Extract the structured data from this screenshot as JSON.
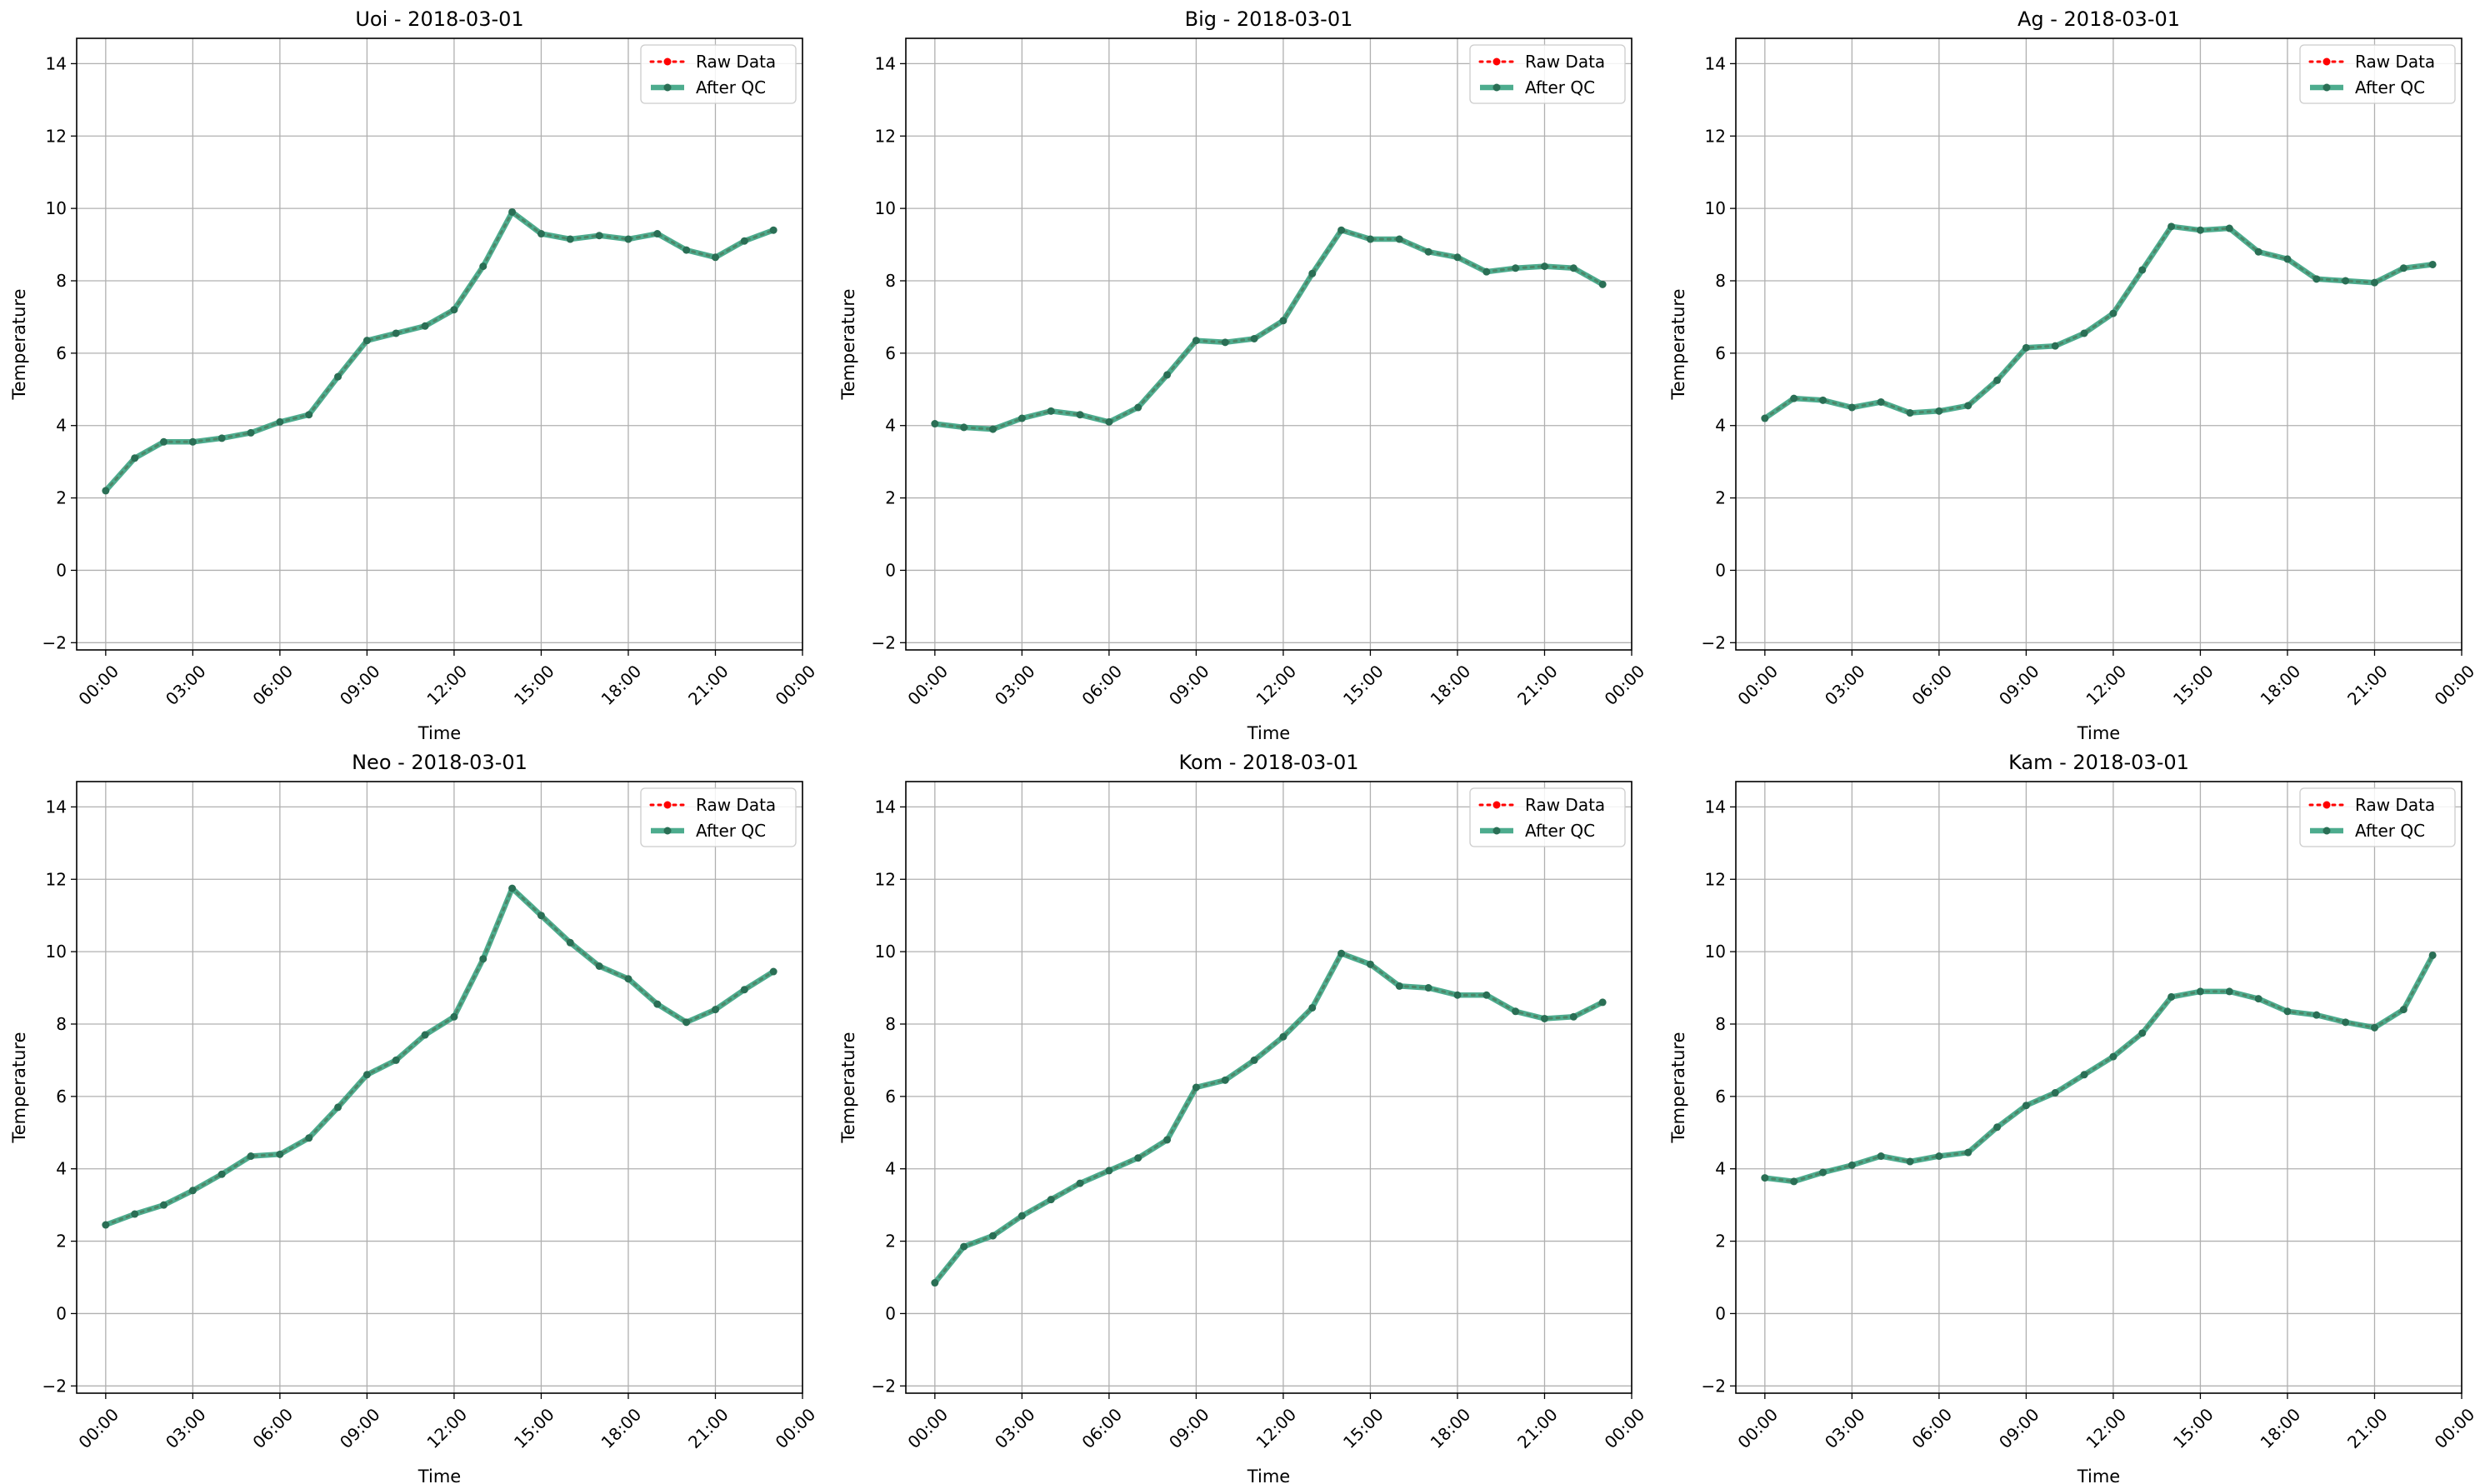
{
  "figure": {
    "title": "",
    "colors": {
      "raw": "#ff0000",
      "qc": "#2e9e7a",
      "qc_marker": "#2a6f55",
      "grid": "#b0b0b0",
      "spine": "#000000"
    }
  },
  "chart_data": [
    {
      "type": "line",
      "title": "Uoi - 2018-03-01",
      "xlabel": "Time",
      "ylabel": "Temperature",
      "xlim": [
        "2018-03-01 -01:00",
        "2018-03-02 00:00"
      ],
      "ylim": [
        -2.2,
        14.7
      ],
      "yticks": [
        -2,
        0,
        2,
        4,
        6,
        8,
        10,
        12,
        14
      ],
      "xticks": [
        "00:00",
        "03:00",
        "06:00",
        "09:00",
        "12:00",
        "15:00",
        "18:00",
        "21:00",
        "00:00"
      ],
      "grid": true,
      "legend": {
        "position": "top-right",
        "entries": [
          "Raw Data",
          "After QC"
        ]
      },
      "x_hours": [
        0,
        1,
        2,
        3,
        4,
        5,
        6,
        7,
        8,
        9,
        10,
        11,
        12,
        13,
        14,
        15,
        16,
        17,
        18,
        19,
        20,
        21,
        22,
        23
      ],
      "series": [
        {
          "name": "Raw Data",
          "values": [
            2.2,
            3.1,
            3.55,
            3.55,
            3.65,
            3.8,
            4.1,
            4.3,
            5.35,
            6.35,
            6.55,
            6.75,
            7.2,
            8.4,
            9.9,
            9.3,
            9.15,
            9.25,
            9.15,
            9.3,
            8.85,
            8.65,
            9.1,
            9.4
          ]
        },
        {
          "name": "After QC",
          "values": [
            2.2,
            3.1,
            3.55,
            3.55,
            3.65,
            3.8,
            4.1,
            4.3,
            5.35,
            6.35,
            6.55,
            6.75,
            7.2,
            8.4,
            9.9,
            9.3,
            9.15,
            9.25,
            9.15,
            9.3,
            8.85,
            8.65,
            9.1,
            9.4
          ]
        }
      ]
    },
    {
      "type": "line",
      "title": "Big - 2018-03-01",
      "xlabel": "Time",
      "ylabel": "Temperature",
      "xlim": [
        "2018-03-01 -01:00",
        "2018-03-02 00:00"
      ],
      "ylim": [
        -2.2,
        14.7
      ],
      "yticks": [
        -2,
        0,
        2,
        4,
        6,
        8,
        10,
        12,
        14
      ],
      "xticks": [
        "00:00",
        "03:00",
        "06:00",
        "09:00",
        "12:00",
        "15:00",
        "18:00",
        "21:00",
        "00:00"
      ],
      "grid": true,
      "legend": {
        "position": "top-right",
        "entries": [
          "Raw Data",
          "After QC"
        ]
      },
      "x_hours": [
        0,
        1,
        2,
        3,
        4,
        5,
        6,
        7,
        8,
        9,
        10,
        11,
        12,
        13,
        14,
        15,
        16,
        17,
        18,
        19,
        20,
        21,
        22,
        23
      ],
      "series": [
        {
          "name": "Raw Data",
          "values": [
            4.05,
            3.95,
            3.9,
            4.2,
            4.4,
            4.3,
            4.1,
            4.5,
            5.4,
            6.35,
            6.3,
            6.4,
            6.9,
            8.2,
            9.4,
            9.15,
            9.15,
            8.8,
            8.65,
            8.25,
            8.35,
            8.4,
            8.35,
            7.9
          ]
        },
        {
          "name": "After QC",
          "values": [
            4.05,
            3.95,
            3.9,
            4.2,
            4.4,
            4.3,
            4.1,
            4.5,
            5.4,
            6.35,
            6.3,
            6.4,
            6.9,
            8.2,
            9.4,
            9.15,
            9.15,
            8.8,
            8.65,
            8.25,
            8.35,
            8.4,
            8.35,
            7.9
          ]
        }
      ]
    },
    {
      "type": "line",
      "title": "Ag - 2018-03-01",
      "xlabel": "Time",
      "ylabel": "Temperature",
      "xlim": [
        "2018-03-01 -01:00",
        "2018-03-02 00:00"
      ],
      "ylim": [
        -2.2,
        14.7
      ],
      "yticks": [
        -2,
        0,
        2,
        4,
        6,
        8,
        10,
        12,
        14
      ],
      "xticks": [
        "00:00",
        "03:00",
        "06:00",
        "09:00",
        "12:00",
        "15:00",
        "18:00",
        "21:00",
        "00:00"
      ],
      "grid": true,
      "legend": {
        "position": "top-right",
        "entries": [
          "Raw Data",
          "After QC"
        ]
      },
      "x_hours": [
        0,
        1,
        2,
        3,
        4,
        5,
        6,
        7,
        8,
        9,
        10,
        11,
        12,
        13,
        14,
        15,
        16,
        17,
        18,
        19,
        20,
        21,
        22,
        23
      ],
      "series": [
        {
          "name": "Raw Data",
          "values": [
            4.2,
            4.75,
            4.7,
            4.5,
            4.65,
            4.35,
            4.4,
            4.55,
            5.25,
            6.15,
            6.2,
            6.55,
            7.1,
            8.3,
            9.5,
            9.4,
            9.45,
            8.8,
            8.6,
            8.05,
            8.0,
            7.95,
            8.35,
            8.45
          ]
        },
        {
          "name": "After QC",
          "values": [
            4.2,
            4.75,
            4.7,
            4.5,
            4.65,
            4.35,
            4.4,
            4.55,
            5.25,
            6.15,
            6.2,
            6.55,
            7.1,
            8.3,
            9.5,
            9.4,
            9.45,
            8.8,
            8.6,
            8.05,
            8.0,
            7.95,
            8.35,
            8.45
          ]
        }
      ]
    },
    {
      "type": "line",
      "title": "Neo - 2018-03-01",
      "xlabel": "Time",
      "ylabel": "Temperature",
      "xlim": [
        "2018-03-01 -01:00",
        "2018-03-02 00:00"
      ],
      "ylim": [
        -2.2,
        14.7
      ],
      "yticks": [
        -2,
        0,
        2,
        4,
        6,
        8,
        10,
        12,
        14
      ],
      "xticks": [
        "00:00",
        "03:00",
        "06:00",
        "09:00",
        "12:00",
        "15:00",
        "18:00",
        "21:00",
        "00:00"
      ],
      "grid": true,
      "legend": {
        "position": "top-right",
        "entries": [
          "Raw Data",
          "After QC"
        ]
      },
      "x_hours": [
        0,
        1,
        2,
        3,
        4,
        5,
        6,
        7,
        8,
        9,
        10,
        11,
        12,
        13,
        14,
        15,
        16,
        17,
        18,
        19,
        20,
        21,
        22,
        23
      ],
      "series": [
        {
          "name": "Raw Data",
          "values": [
            2.45,
            2.75,
            3.0,
            3.4,
            3.85,
            4.35,
            4.4,
            4.85,
            5.7,
            6.6,
            7.0,
            7.7,
            8.2,
            9.8,
            11.75,
            11.0,
            10.25,
            9.6,
            9.25,
            8.55,
            8.05,
            8.4,
            8.95,
            9.45
          ]
        },
        {
          "name": "After QC",
          "values": [
            2.45,
            2.75,
            3.0,
            3.4,
            3.85,
            4.35,
            4.4,
            4.85,
            5.7,
            6.6,
            7.0,
            7.7,
            8.2,
            9.8,
            11.75,
            11.0,
            10.25,
            9.6,
            9.25,
            8.55,
            8.05,
            8.4,
            8.95,
            9.45
          ]
        }
      ]
    },
    {
      "type": "line",
      "title": "Kom - 2018-03-01",
      "xlabel": "Time",
      "ylabel": "Temperature",
      "xlim": [
        "2018-03-01 -01:00",
        "2018-03-02 00:00"
      ],
      "ylim": [
        -2.2,
        14.7
      ],
      "yticks": [
        -2,
        0,
        2,
        4,
        6,
        8,
        10,
        12,
        14
      ],
      "xticks": [
        "00:00",
        "03:00",
        "06:00",
        "09:00",
        "12:00",
        "15:00",
        "18:00",
        "21:00",
        "00:00"
      ],
      "grid": true,
      "legend": {
        "position": "top-right",
        "entries": [
          "Raw Data",
          "After QC"
        ]
      },
      "x_hours": [
        0,
        1,
        2,
        3,
        4,
        5,
        6,
        7,
        8,
        9,
        10,
        11,
        12,
        13,
        14,
        15,
        16,
        17,
        18,
        19,
        20,
        21,
        22,
        23
      ],
      "series": [
        {
          "name": "Raw Data",
          "values": [
            0.85,
            1.85,
            2.15,
            2.7,
            3.15,
            3.6,
            3.95,
            4.3,
            4.8,
            6.25,
            6.45,
            7.0,
            7.65,
            8.45,
            9.95,
            9.65,
            9.05,
            9.0,
            8.8,
            8.8,
            8.35,
            8.15,
            8.2,
            8.6
          ]
        },
        {
          "name": "After QC",
          "values": [
            0.85,
            1.85,
            2.15,
            2.7,
            3.15,
            3.6,
            3.95,
            4.3,
            4.8,
            6.25,
            6.45,
            7.0,
            7.65,
            8.45,
            9.95,
            9.65,
            9.05,
            9.0,
            8.8,
            8.8,
            8.35,
            8.15,
            8.2,
            8.6
          ]
        }
      ]
    },
    {
      "type": "line",
      "title": "Kam - 2018-03-01",
      "xlabel": "Time",
      "ylabel": "Temperature",
      "xlim": [
        "2018-03-01 -01:00",
        "2018-03-02 00:00"
      ],
      "ylim": [
        -2.2,
        14.7
      ],
      "yticks": [
        -2,
        0,
        2,
        4,
        6,
        8,
        10,
        12,
        14
      ],
      "xticks": [
        "00:00",
        "03:00",
        "06:00",
        "09:00",
        "12:00",
        "15:00",
        "18:00",
        "21:00",
        "00:00"
      ],
      "grid": true,
      "legend": {
        "position": "top-right",
        "entries": [
          "Raw Data",
          "After QC"
        ]
      },
      "x_hours": [
        0,
        1,
        2,
        3,
        4,
        5,
        6,
        7,
        8,
        9,
        10,
        11,
        12,
        13,
        14,
        15,
        16,
        17,
        18,
        19,
        20,
        21,
        22,
        23
      ],
      "series": [
        {
          "name": "Raw Data",
          "values": [
            3.75,
            3.65,
            3.9,
            4.1,
            4.35,
            4.2,
            4.35,
            4.45,
            5.15,
            5.75,
            6.1,
            6.6,
            7.1,
            7.75,
            8.75,
            8.9,
            8.9,
            8.7,
            8.35,
            8.25,
            8.05,
            7.9,
            8.4,
            9.9
          ]
        },
        {
          "name": "After QC",
          "values": [
            3.75,
            3.65,
            3.9,
            4.1,
            4.35,
            4.2,
            4.35,
            4.45,
            5.15,
            5.75,
            6.1,
            6.6,
            7.1,
            7.75,
            8.75,
            8.9,
            8.9,
            8.7,
            8.35,
            8.25,
            8.05,
            7.9,
            8.4,
            9.9
          ]
        }
      ]
    }
  ]
}
